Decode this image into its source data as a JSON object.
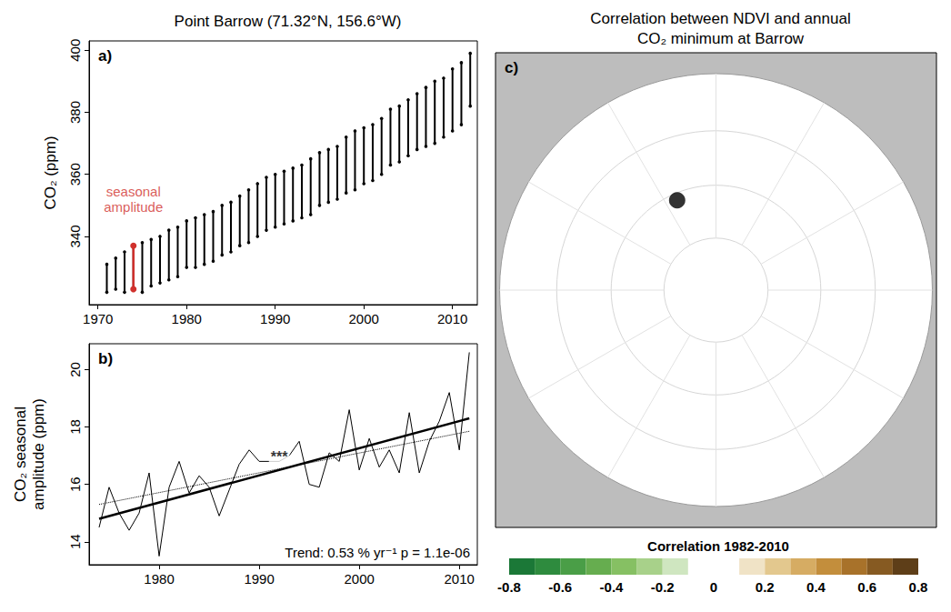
{
  "chart_data": [
    {
      "type": "range",
      "title": "Point Barrow (71.32°N, 156.6°W)",
      "panel_label": "a)",
      "y_label": "CO₂ (ppm)",
      "x": [
        1971,
        1972,
        1973,
        1974,
        1975,
        1976,
        1977,
        1978,
        1979,
        1980,
        1981,
        1982,
        1983,
        1984,
        1985,
        1986,
        1987,
        1988,
        1989,
        1990,
        1991,
        1992,
        1993,
        1994,
        1995,
        1996,
        1997,
        1998,
        1999,
        2000,
        2001,
        2002,
        2003,
        2004,
        2005,
        2006,
        2007,
        2008,
        2009,
        2010,
        2011,
        2012
      ],
      "max": [
        331,
        333,
        335,
        337,
        338,
        339,
        340,
        342,
        343,
        345,
        346,
        347,
        348,
        350,
        351,
        353,
        355,
        357,
        359,
        360,
        361,
        362,
        363,
        365,
        367,
        368,
        369,
        372,
        374,
        375,
        376,
        378,
        381,
        382,
        384,
        386,
        388,
        390,
        391,
        394,
        396,
        399
      ],
      "min": [
        322,
        323,
        322,
        323,
        322,
        324,
        325,
        326,
        327,
        330,
        330,
        331,
        332,
        334,
        335,
        337,
        338,
        340,
        342,
        343,
        344,
        345,
        346,
        347,
        350,
        351,
        352,
        354,
        355,
        357,
        358,
        360,
        363,
        364,
        366,
        368,
        369,
        370,
        372,
        374,
        376,
        382
      ],
      "color": "#000000",
      "xlim": [
        1969,
        2012.8
      ],
      "xticks": [
        1970,
        1980,
        1990,
        2000,
        2010
      ],
      "ylim": [
        318,
        403
      ],
      "yticks": [
        340,
        360,
        380,
        400
      ],
      "grid": false,
      "annotations": [
        {
          "text": "seasonal amplitude",
          "x": 1974,
          "y": 352,
          "color": "#d0312d"
        }
      ],
      "arrow": {
        "x": 1974,
        "y": [
          323,
          337
        ],
        "color": "#d0312d"
      }
    },
    {
      "type": "line",
      "panel_label": "b)",
      "y_label": "CO₂ seasonal amplitude (ppm)",
      "series": [
        {
          "x": [
            1974,
            1975,
            1976,
            1977,
            1978,
            1979,
            1980,
            1981,
            1982,
            1983,
            1984,
            1985,
            1986,
            1987,
            1988,
            1989,
            1990,
            1991,
            1992,
            1993,
            1994,
            1995,
            1996,
            1997,
            1998,
            1999,
            2000,
            2001,
            2002,
            2003,
            2004,
            2005,
            2006,
            2007,
            2008,
            2009,
            2010,
            2011
          ],
          "values": [
            14.5,
            15.9,
            15.0,
            14.4,
            15.0,
            16.4,
            13.5,
            15.9,
            16.8,
            15.7,
            16.3,
            15.9,
            14.9,
            15.8,
            16.7,
            17.2,
            16.8,
            16.8,
            16.8,
            17.0,
            17.5,
            16.0,
            15.9,
            17.1,
            16.8,
            18.6,
            16.5,
            17.6,
            16.6,
            17.2,
            16.4,
            18.5,
            16.4,
            17.5,
            18.2,
            19.2,
            17.2,
            20.6
          ],
          "color": "#000000",
          "line_style": "solid"
        },
        {
          "x": [
            1974,
            2011
          ],
          "values": [
            14.8,
            18.3
          ],
          "color": "#000000",
          "line_style": "solid"
        },
        {
          "x": [
            1974,
            2011
          ],
          "values": [
            15.3,
            17.85
          ],
          "color": "#000000",
          "line_style": "dotted"
        }
      ],
      "xlim": [
        1973,
        2011.8
      ],
      "xticks": [
        1980,
        1990,
        2000,
        2010
      ],
      "ylim": [
        13.2,
        20.9
      ],
      "yticks": [
        14,
        16,
        18,
        20
      ],
      "grid": false,
      "annotations": [
        {
          "text": "***",
          "x": 1992,
          "y": 16.95,
          "color": "#000000"
        }
      ],
      "caption": "Trend: 0.53 % yr⁻¹ p = 1.1e-06"
    },
    {
      "type": "map",
      "title": "Correlation between NDVI and annual CO₂ minimum at Barrow",
      "panel_label": "c)",
      "site": {
        "lat": 71.32,
        "lon": -156.6,
        "color": "#000000"
      },
      "colorbar": {
        "title": "Correlation 1982-2010",
        "bins": [
          -0.8,
          -0.7,
          -0.6,
          -0.5,
          -0.4,
          -0.3,
          -0.2,
          -0.1,
          0,
          0.1,
          0.2,
          0.3,
          0.4,
          0.5,
          0.6,
          0.7,
          0.8
        ],
        "colors": [
          "#1b7837",
          "#2e8b3e",
          "#4a9e47",
          "#66ad4f",
          "#86c063",
          "#a8d18a",
          "#cfe6c0",
          "#ffffff",
          "#ffffff",
          "#f0e3c6",
          "#e3c88e",
          "#d6ac63",
          "#c38e3c",
          "#a8722a",
          "#865a22",
          "#5e3e18"
        ],
        "ticks": [
          -0.8,
          -0.6,
          -0.4,
          -0.2,
          0,
          0.2,
          0.4,
          0.6,
          0.8
        ]
      }
    }
  ]
}
